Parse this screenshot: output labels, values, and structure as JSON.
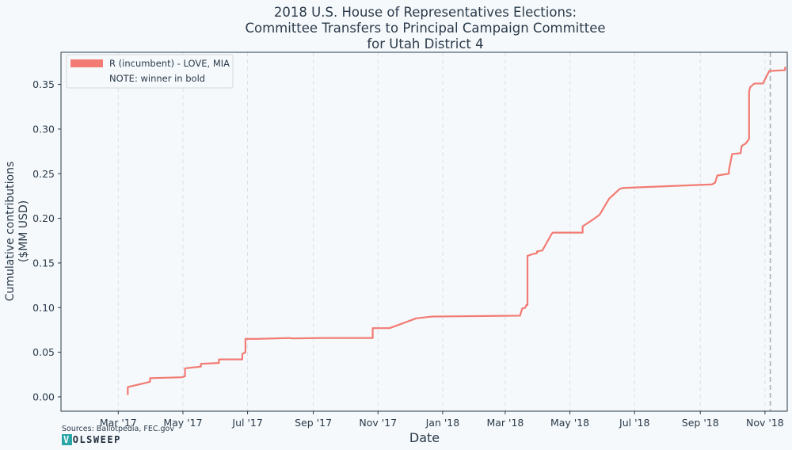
{
  "chart_data": {
    "type": "line",
    "title": [
      "2018 U.S. House of Representatives Elections:",
      "Committee Transfers to Principal Campaign Committee",
      "for Utah District 4"
    ],
    "xlabel": "Date",
    "ylabel": [
      "Cumulative contributions",
      "($MM USD)"
    ],
    "xlim": [
      "2017-01-06",
      "2018-11-22"
    ],
    "ylim": [
      -0.016,
      0.386
    ],
    "yticks": [
      0.0,
      0.05,
      0.1,
      0.15,
      0.2,
      0.25,
      0.3,
      0.35
    ],
    "ytick_labels": [
      "0.00",
      "0.05",
      "0.10",
      "0.15",
      "0.20",
      "0.25",
      "0.30",
      "0.35"
    ],
    "xticks": [
      "2017-03-01",
      "2017-05-01",
      "2017-07-01",
      "2017-09-01",
      "2017-11-01",
      "2018-01-01",
      "2018-03-01",
      "2018-05-01",
      "2018-07-01",
      "2018-09-01",
      "2018-11-01"
    ],
    "xtick_labels": [
      "Mar '17",
      "May '17",
      "Jul '17",
      "Sep '17",
      "Nov '17",
      "Jan '18",
      "Mar '18",
      "May '18",
      "Jul '18",
      "Sep '18",
      "Nov '18"
    ],
    "grid": "vertical dashed",
    "election_day": "2018-11-06",
    "legend": {
      "placement": "top-left",
      "entries": [
        "R (incumbent) - LOVE, MIA",
        "NOTE: winner in bold"
      ]
    },
    "series": [
      {
        "name": "R (incumbent) - LOVE, MIA",
        "color": "#f27b73",
        "points": [
          [
            "2017-03-10",
            0.003
          ],
          [
            "2017-03-10",
            0.011
          ],
          [
            "2017-03-28",
            0.016
          ],
          [
            "2017-03-31",
            0.017
          ],
          [
            "2017-03-31",
            0.021
          ],
          [
            "2017-04-30",
            0.022
          ],
          [
            "2017-05-03",
            0.023
          ],
          [
            "2017-05-03",
            0.032
          ],
          [
            "2017-05-18",
            0.034
          ],
          [
            "2017-05-18",
            0.037
          ],
          [
            "2017-06-04",
            0.038
          ],
          [
            "2017-06-04",
            0.042
          ],
          [
            "2017-06-26",
            0.042
          ],
          [
            "2017-06-26",
            0.048
          ],
          [
            "2017-06-29",
            0.05
          ],
          [
            "2017-06-29",
            0.065
          ],
          [
            "2017-07-10",
            0.065
          ],
          [
            "2017-08-10",
            0.066
          ],
          [
            "2017-08-12",
            0.0655
          ],
          [
            "2017-09-10",
            0.066
          ],
          [
            "2017-10-27",
            0.066
          ],
          [
            "2017-10-27",
            0.077
          ],
          [
            "2017-11-12",
            0.077
          ],
          [
            "2017-12-07",
            0.088
          ],
          [
            "2017-12-22",
            0.09
          ],
          [
            "2018-03-15",
            0.091
          ],
          [
            "2018-03-17",
            0.099
          ],
          [
            "2018-03-20",
            0.1
          ],
          [
            "2018-03-21",
            0.103
          ],
          [
            "2018-03-22",
            0.103
          ],
          [
            "2018-03-22",
            0.158
          ],
          [
            "2018-03-27",
            0.16
          ],
          [
            "2018-03-31",
            0.161
          ],
          [
            "2018-03-31",
            0.163
          ],
          [
            "2018-04-05",
            0.164
          ],
          [
            "2018-04-14",
            0.183
          ],
          [
            "2018-04-15",
            0.184
          ],
          [
            "2018-05-13",
            0.184
          ],
          [
            "2018-05-13",
            0.191
          ],
          [
            "2018-05-22",
            0.198
          ],
          [
            "2018-05-29",
            0.204
          ],
          [
            "2018-06-04",
            0.216
          ],
          [
            "2018-06-07",
            0.222
          ],
          [
            "2018-06-17",
            0.233
          ],
          [
            "2018-06-20",
            0.234
          ],
          [
            "2018-09-12",
            0.238
          ],
          [
            "2018-09-15",
            0.24
          ],
          [
            "2018-09-17",
            0.248
          ],
          [
            "2018-09-28",
            0.25
          ],
          [
            "2018-09-28",
            0.254
          ],
          [
            "2018-10-01",
            0.272
          ],
          [
            "2018-10-09",
            0.273
          ],
          [
            "2018-10-10",
            0.281
          ],
          [
            "2018-10-14",
            0.284
          ],
          [
            "2018-10-17",
            0.289
          ],
          [
            "2018-10-17",
            0.342
          ],
          [
            "2018-10-18",
            0.347
          ],
          [
            "2018-10-22",
            0.351
          ],
          [
            "2018-10-30",
            0.351
          ],
          [
            "2018-11-05",
            0.365
          ],
          [
            "2018-11-20",
            0.366
          ],
          [
            "2018-11-20",
            0.369
          ]
        ]
      }
    ]
  },
  "footer": {
    "sources": "Sources: Ballotpedia, FEC.gov",
    "logo_mark": "V",
    "logo_text": "OLSWEEP"
  }
}
